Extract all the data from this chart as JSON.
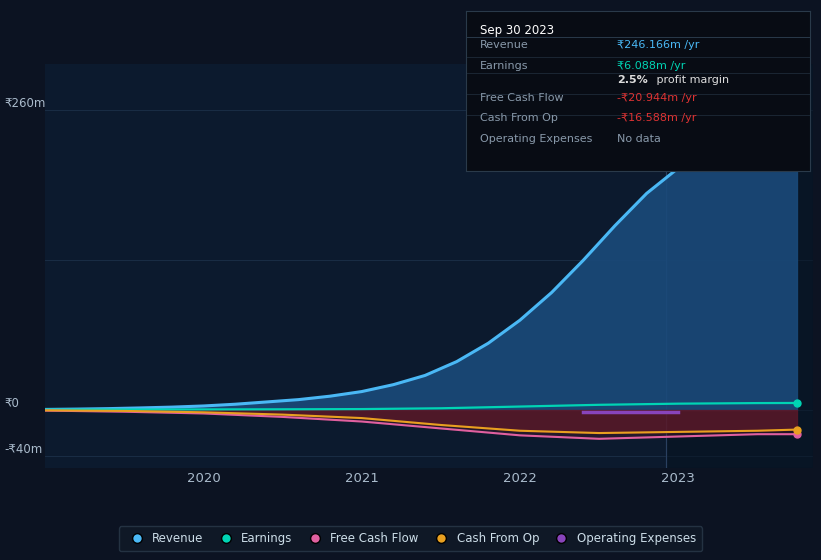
{
  "background_color": "#0c1322",
  "plot_bg_color": "#0c1a2e",
  "grid_color": "#1a2d45",
  "ylim": [
    -50,
    300
  ],
  "y_tick_260": 260,
  "y_tick_0": 0,
  "y_tick_neg40": -40,
  "y_label_top": "₹260m",
  "y_label_zero": "₹0",
  "y_label_bottom": "-₹40m",
  "xlim_start": 2019.0,
  "xlim_end": 2023.85,
  "x_ticks": [
    2020,
    2021,
    2022,
    2023
  ],
  "highlight_x": 2022.92,
  "revenue_color": "#4ab8f5",
  "revenue_fill_color": "#1a4a7a",
  "earnings_color": "#00d4b4",
  "free_cash_color": "#e060a0",
  "cash_from_op_color": "#e8a020",
  "op_expenses_color": "#8844bb",
  "negative_fill_color": "#5a1828",
  "legend_items": [
    {
      "label": "Revenue",
      "color": "#4ab8f5"
    },
    {
      "label": "Earnings",
      "color": "#00d4b4"
    },
    {
      "label": "Free Cash Flow",
      "color": "#e060a0"
    },
    {
      "label": "Cash From Op",
      "color": "#e8a020"
    },
    {
      "label": "Operating Expenses",
      "color": "#8844bb"
    }
  ],
  "tooltip": {
    "date": "Sep 30 2023",
    "bg_color": "#080c14",
    "border_color": "#2a3a4a",
    "header_color": "#ffffff",
    "label_color": "#8899aa",
    "rows": [
      {
        "label": "Revenue",
        "value": "₹246.166m /yr",
        "value_color": "#4ab8f5"
      },
      {
        "label": "Earnings",
        "value": "₹6.088m /yr",
        "value_color": "#00d4b4"
      },
      {
        "label": "",
        "value": "2.5% profit margin",
        "value_color": "#ffffff"
      },
      {
        "label": "Free Cash Flow",
        "value": "-₹20.944m /yr",
        "value_color": "#dd3333"
      },
      {
        "label": "Cash From Op",
        "value": "-₹16.588m /yr",
        "value_color": "#dd3333"
      },
      {
        "label": "Operating Expenses",
        "value": "No data",
        "value_color": "#8899aa"
      }
    ]
  },
  "revenue_x": [
    2019.0,
    2019.2,
    2019.4,
    2019.6,
    2019.8,
    2020.0,
    2020.2,
    2020.4,
    2020.6,
    2020.8,
    2021.0,
    2021.2,
    2021.4,
    2021.6,
    2021.8,
    2022.0,
    2022.2,
    2022.4,
    2022.6,
    2022.8,
    2023.0,
    2023.2,
    2023.4,
    2023.6,
    2023.75
  ],
  "revenue_y": [
    0.5,
    0.8,
    1.2,
    1.8,
    2.5,
    3.5,
    5,
    7,
    9,
    12,
    16,
    22,
    30,
    42,
    58,
    78,
    102,
    130,
    160,
    188,
    210,
    226,
    237,
    243,
    246
  ],
  "earnings_x": [
    2019.0,
    2019.5,
    2020.0,
    2020.5,
    2021.0,
    2021.5,
    2022.0,
    2022.5,
    2023.0,
    2023.5,
    2023.75
  ],
  "earnings_y": [
    0.3,
    0.4,
    0.5,
    0.6,
    0.8,
    1.5,
    3.0,
    4.5,
    5.5,
    6.0,
    6.1
  ],
  "free_cash_x": [
    2019.0,
    2019.5,
    2020.0,
    2020.5,
    2021.0,
    2021.5,
    2022.0,
    2022.5,
    2023.0,
    2023.5,
    2023.75
  ],
  "free_cash_y": [
    -0.5,
    -1.5,
    -3,
    -6,
    -10,
    -16,
    -22,
    -25,
    -23,
    -21,
    -21
  ],
  "cash_from_op_x": [
    2019.0,
    2019.5,
    2020.0,
    2020.5,
    2021.0,
    2021.5,
    2022.0,
    2022.5,
    2023.0,
    2023.5,
    2023.75
  ],
  "cash_from_op_y": [
    -0.3,
    -0.8,
    -2,
    -4,
    -7,
    -13,
    -18,
    -20,
    -19,
    -18,
    -17
  ],
  "op_exp_x": [
    2022.4,
    2022.55,
    2022.7,
    2022.85,
    2023.0
  ],
  "op_exp_y": [
    -2,
    -2,
    -2,
    -2,
    -2
  ]
}
